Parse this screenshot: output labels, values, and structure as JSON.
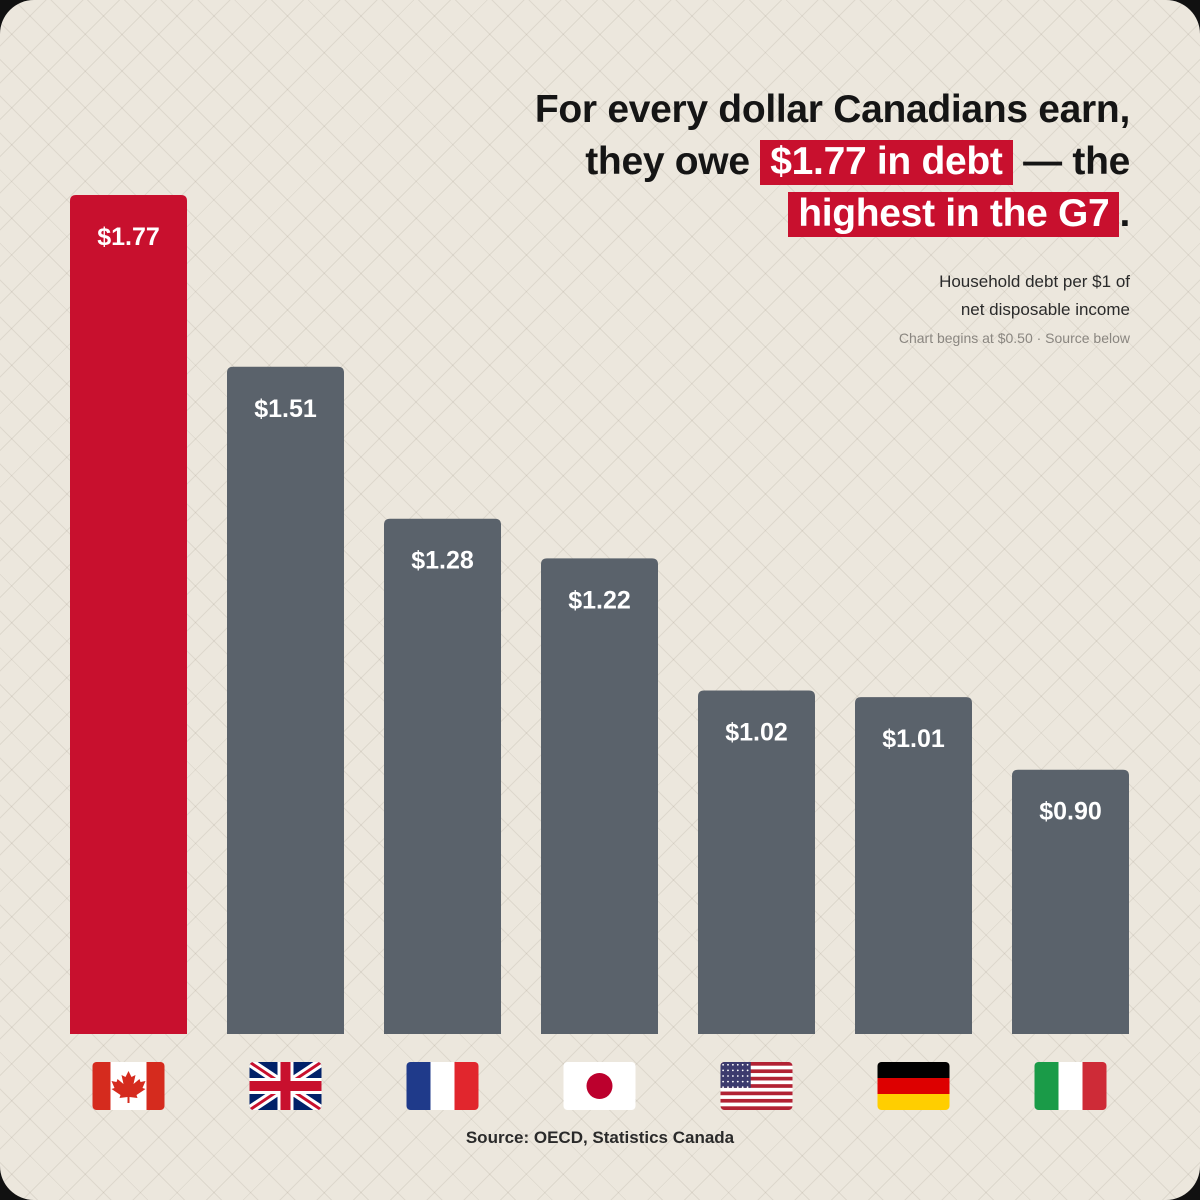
{
  "headline": {
    "line1": "For every dollar Canadians earn,",
    "line2_pre": "they owe ",
    "line2_highlight": "$1.77 in debt",
    "line2_post": " — the",
    "line3_highlight": "highest in the G7",
    "line3_post": "."
  },
  "subtitle": {
    "line1": "Household debt per $1 of",
    "line2": "net disposable income"
  },
  "note": "Chart begins at $0.50 · Source below",
  "source": "Source: OECD, Statistics Canada",
  "colors": {
    "highlight": "#c8102e",
    "bar_default": "#5a626b",
    "bar_highlight": "#c8102e"
  },
  "chart_data": {
    "type": "bar",
    "title": "For every dollar Canadians earn, they owe $1.77 in debt — the highest in the G7.",
    "ylabel": "Household debt per $1 of net disposable income",
    "xlabel": "",
    "ylim": [
      0.5,
      1.77
    ],
    "categories": [
      "Canada",
      "United Kingdom",
      "France",
      "Japan",
      "United States",
      "Germany",
      "Italy"
    ],
    "values": [
      1.77,
      1.51,
      1.28,
      1.22,
      1.02,
      1.01,
      0.9
    ],
    "labels": [
      "$1.77",
      "$1.51",
      "$1.28",
      "$1.22",
      "$1.02",
      "$1.01",
      "$0.90"
    ],
    "highlight_index": 0,
    "flag_icons": [
      "canada-flag-icon",
      "uk-flag-icon",
      "france-flag-icon",
      "japan-flag-icon",
      "usa-flag-icon",
      "germany-flag-icon",
      "italy-flag-icon"
    ],
    "grid": false,
    "legend": "none"
  }
}
